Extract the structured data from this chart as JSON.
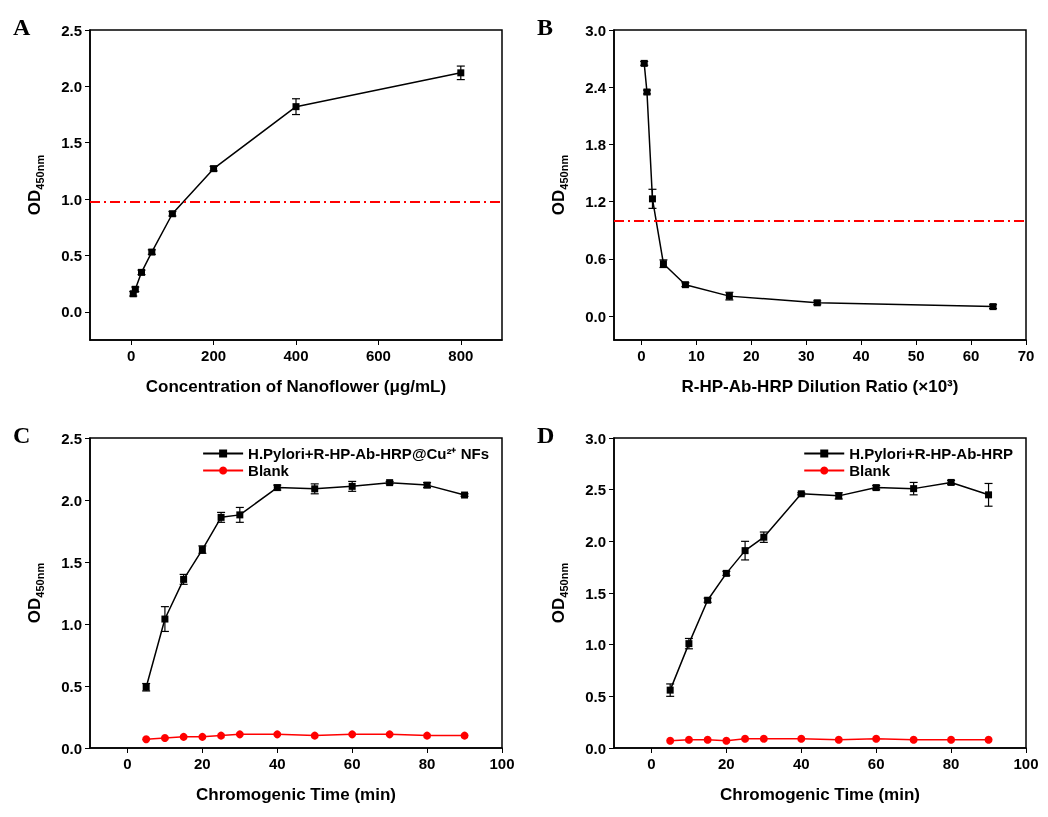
{
  "chart_data": [
    {
      "type": "line",
      "title": "A",
      "xlabel": "Concentration of Nanoflower (μg/mL)",
      "ylabel": "OD$_{450nm}$",
      "xlim": [
        -100,
        900
      ],
      "xticks": [
        0,
        200,
        400,
        600,
        800
      ],
      "ylim": [
        -0.25,
        2.5
      ],
      "yticks": [
        {
          "value": 0,
          "label": "0.0"
        },
        0.5,
        {
          "value": 1,
          "label": "1.0"
        },
        1.5,
        {
          "value": 2,
          "label": "2.0"
        },
        2.5
      ],
      "grid": false,
      "legend": false,
      "series": [
        {
          "color": "#000000",
          "marker": "square",
          "x": [
            5,
            10,
            25,
            50,
            100,
            200,
            400,
            800
          ],
          "values": [
            0.16,
            0.2,
            0.35,
            0.53,
            0.87,
            1.27,
            1.82,
            2.12
          ],
          "errors": [
            0.02,
            0.02,
            0.02,
            0.02,
            0.02,
            0.02,
            0.07,
            0.06
          ]
        }
      ],
      "ref_lines": [
        {
          "axis": "y",
          "value": 0.98,
          "color": "#ff0000",
          "line_style": "dashed"
        }
      ]
    },
    {
      "type": "line",
      "title": "B",
      "xlabel": "R-HP-Ab-HRP Dilution Ratio (×10³)",
      "ylabel": "OD$_{450nm}$",
      "xlim": [
        -5,
        70
      ],
      "xticks": [
        0,
        10,
        20,
        30,
        40,
        50,
        60,
        70
      ],
      "ylim": [
        -0.25,
        3.0
      ],
      "yticks": [
        {
          "value": 0,
          "label": "0.0"
        },
        0.6,
        1.2,
        1.8,
        2.4,
        {
          "value": 3,
          "label": "3.0"
        }
      ],
      "grid": false,
      "legend": false,
      "series": [
        {
          "color": "#000000",
          "marker": "square",
          "x": [
            0.5,
            1,
            2,
            4,
            8,
            16,
            32,
            64
          ],
          "values": [
            2.65,
            2.35,
            1.23,
            0.55,
            0.33,
            0.21,
            0.14,
            0.1
          ],
          "errors": [
            0.02,
            0.02,
            0.1,
            0.04,
            0.02,
            0.04,
            0.02,
            0.02
          ]
        }
      ],
      "ref_lines": [
        {
          "axis": "y",
          "value": 1.0,
          "color": "#ff0000",
          "line_style": "dashed"
        }
      ]
    },
    {
      "type": "line",
      "title": "C",
      "xlabel": "Chromogenic Time (min)",
      "ylabel": "OD$_{450nm}$",
      "xlim": [
        -10,
        100
      ],
      "xticks": [
        0,
        20,
        40,
        60,
        80,
        100
      ],
      "ylim": [
        0,
        2.5
      ],
      "yticks": [
        {
          "value": 0,
          "label": "0.0"
        },
        0.5,
        {
          "value": 1,
          "label": "1.0"
        },
        1.5,
        {
          "value": 2,
          "label": "2.0"
        },
        2.5
      ],
      "grid": false,
      "legend": "top right",
      "x": [
        5,
        10,
        15,
        20,
        25,
        30,
        40,
        50,
        60,
        70,
        80,
        90
      ],
      "series": [
        {
          "name": "H.Pylori+R-HP-Ab-HRP@Cu²⁺ NFs",
          "color": "#000000",
          "marker": "square",
          "values": [
            0.49,
            1.04,
            1.36,
            1.6,
            1.86,
            1.88,
            2.1,
            2.09,
            2.11,
            2.14,
            2.12,
            2.04
          ],
          "errors": [
            0.03,
            0.1,
            0.04,
            0.03,
            0.04,
            0.06,
            0.02,
            0.04,
            0.04,
            0.01,
            0.02,
            0.01
          ]
        },
        {
          "name": "Blank",
          "color": "#ff0000",
          "marker": "circle",
          "values": [
            0.07,
            0.08,
            0.09,
            0.09,
            0.1,
            0.11,
            0.11,
            0.1,
            0.11,
            0.11,
            0.1,
            0.1
          ]
        }
      ]
    },
    {
      "type": "line",
      "title": "D",
      "xlabel": "Chromogenic Time (min)",
      "ylabel": "OD$_{450nm}$",
      "xlim": [
        -10,
        100
      ],
      "xticks": [
        0,
        20,
        40,
        60,
        80,
        100
      ],
      "ylim": [
        0,
        3.0
      ],
      "yticks": [
        {
          "value": 0,
          "label": "0.0"
        },
        0.5,
        {
          "value": 1,
          "label": "1.0"
        },
        1.5,
        {
          "value": 2,
          "label": "2.0"
        },
        2.5,
        {
          "value": 3,
          "label": "3.0"
        }
      ],
      "grid": false,
      "legend": "top right",
      "x": [
        5,
        10,
        15,
        20,
        25,
        30,
        40,
        50,
        60,
        70,
        80,
        90
      ],
      "series": [
        {
          "name": "H.Pylori+R-HP-Ab-HRP",
          "color": "#000000",
          "marker": "square",
          "values": [
            0.56,
            1.01,
            1.43,
            1.69,
            1.91,
            2.04,
            2.46,
            2.44,
            2.52,
            2.51,
            2.57,
            2.45
          ],
          "errors": [
            0.06,
            0.05,
            0.02,
            0.02,
            0.09,
            0.05,
            0.01,
            0.03,
            0.02,
            0.06,
            0.02,
            0.11
          ]
        },
        {
          "name": "Blank",
          "color": "#ff0000",
          "marker": "circle",
          "values": [
            0.07,
            0.08,
            0.08,
            0.07,
            0.09,
            0.09,
            0.09,
            0.08,
            0.09,
            0.08,
            0.08,
            0.08
          ]
        }
      ]
    }
  ]
}
